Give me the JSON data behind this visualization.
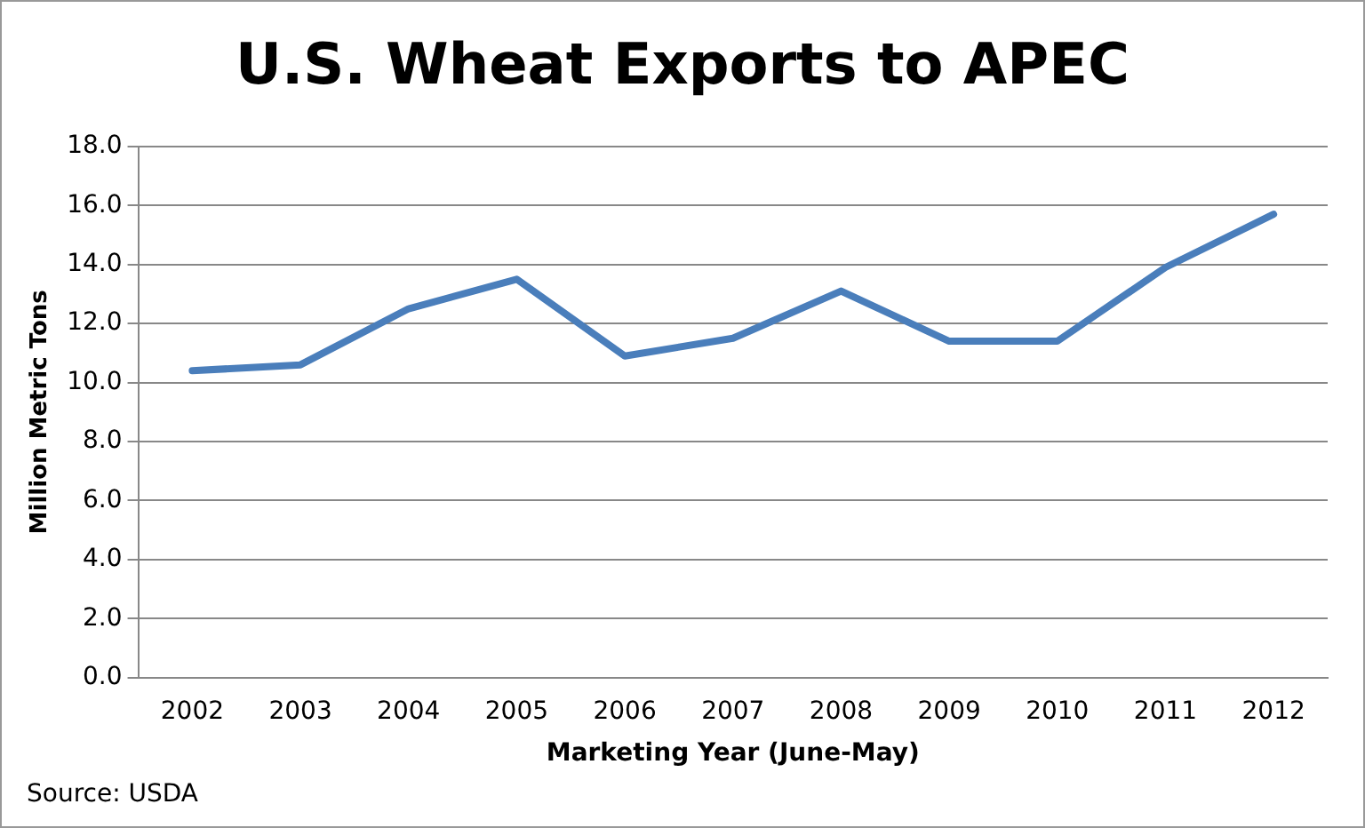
{
  "chart_data": {
    "type": "line",
    "title": "U.S. Wheat Exports to APEC",
    "xlabel": "Marketing Year (June-May)",
    "ylabel": "Million Metric Tons",
    "categories": [
      "2002",
      "2003",
      "2004",
      "2005",
      "2006",
      "2007",
      "2008",
      "2009",
      "2010",
      "2011",
      "2012"
    ],
    "series": [
      {
        "color": "#4a7ebb",
        "values": [
          10.4,
          10.6,
          12.5,
          13.5,
          10.9,
          11.5,
          13.1,
          11.4,
          11.4,
          13.9,
          15.7
        ]
      }
    ],
    "ylim": [
      0,
      18
    ],
    "yticks": [
      {
        "value": 0,
        "label": "0.0"
      },
      {
        "value": 2,
        "label": "2.0"
      },
      {
        "value": 4,
        "label": "4.0"
      },
      {
        "value": 6,
        "label": "6.0"
      },
      {
        "value": 8,
        "label": "8.0"
      },
      {
        "value": 10,
        "label": "10.0"
      },
      {
        "value": 12,
        "label": "12.0"
      },
      {
        "value": 14,
        "label": "14.0"
      },
      {
        "value": 16,
        "label": "16.0"
      },
      {
        "value": 18,
        "label": "18.0"
      }
    ],
    "grid": "y",
    "legend": false,
    "marker": "none",
    "line_style": "solid",
    "annotations": [
      "Source: USDA"
    ]
  }
}
